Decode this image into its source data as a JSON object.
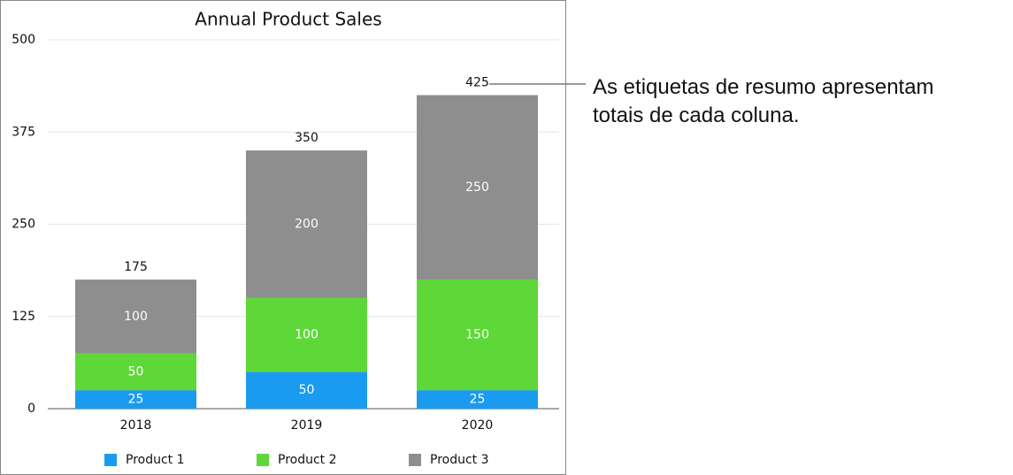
{
  "chart_data": {
    "type": "stacked_bar",
    "title": "Annual Product Sales",
    "categories": [
      "2018",
      "2019",
      "2020"
    ],
    "series": [
      {
        "name": "Product 1",
        "color": "#1a9bf0",
        "values": [
          25,
          50,
          25
        ]
      },
      {
        "name": "Product 2",
        "color": "#5ed838",
        "values": [
          50,
          100,
          150
        ]
      },
      {
        "name": "Product 3",
        "color": "#8e8e8e",
        "values": [
          100,
          200,
          250
        ]
      }
    ],
    "totals": [
      175,
      350,
      425
    ],
    "ylim": [
      0,
      500
    ],
    "yticks": [
      0,
      125,
      250,
      375,
      500
    ],
    "grid": true,
    "legend": "bottom",
    "annotation": [
      "As etiquetas de resumo apresentam",
      "totais de cada coluna."
    ]
  }
}
